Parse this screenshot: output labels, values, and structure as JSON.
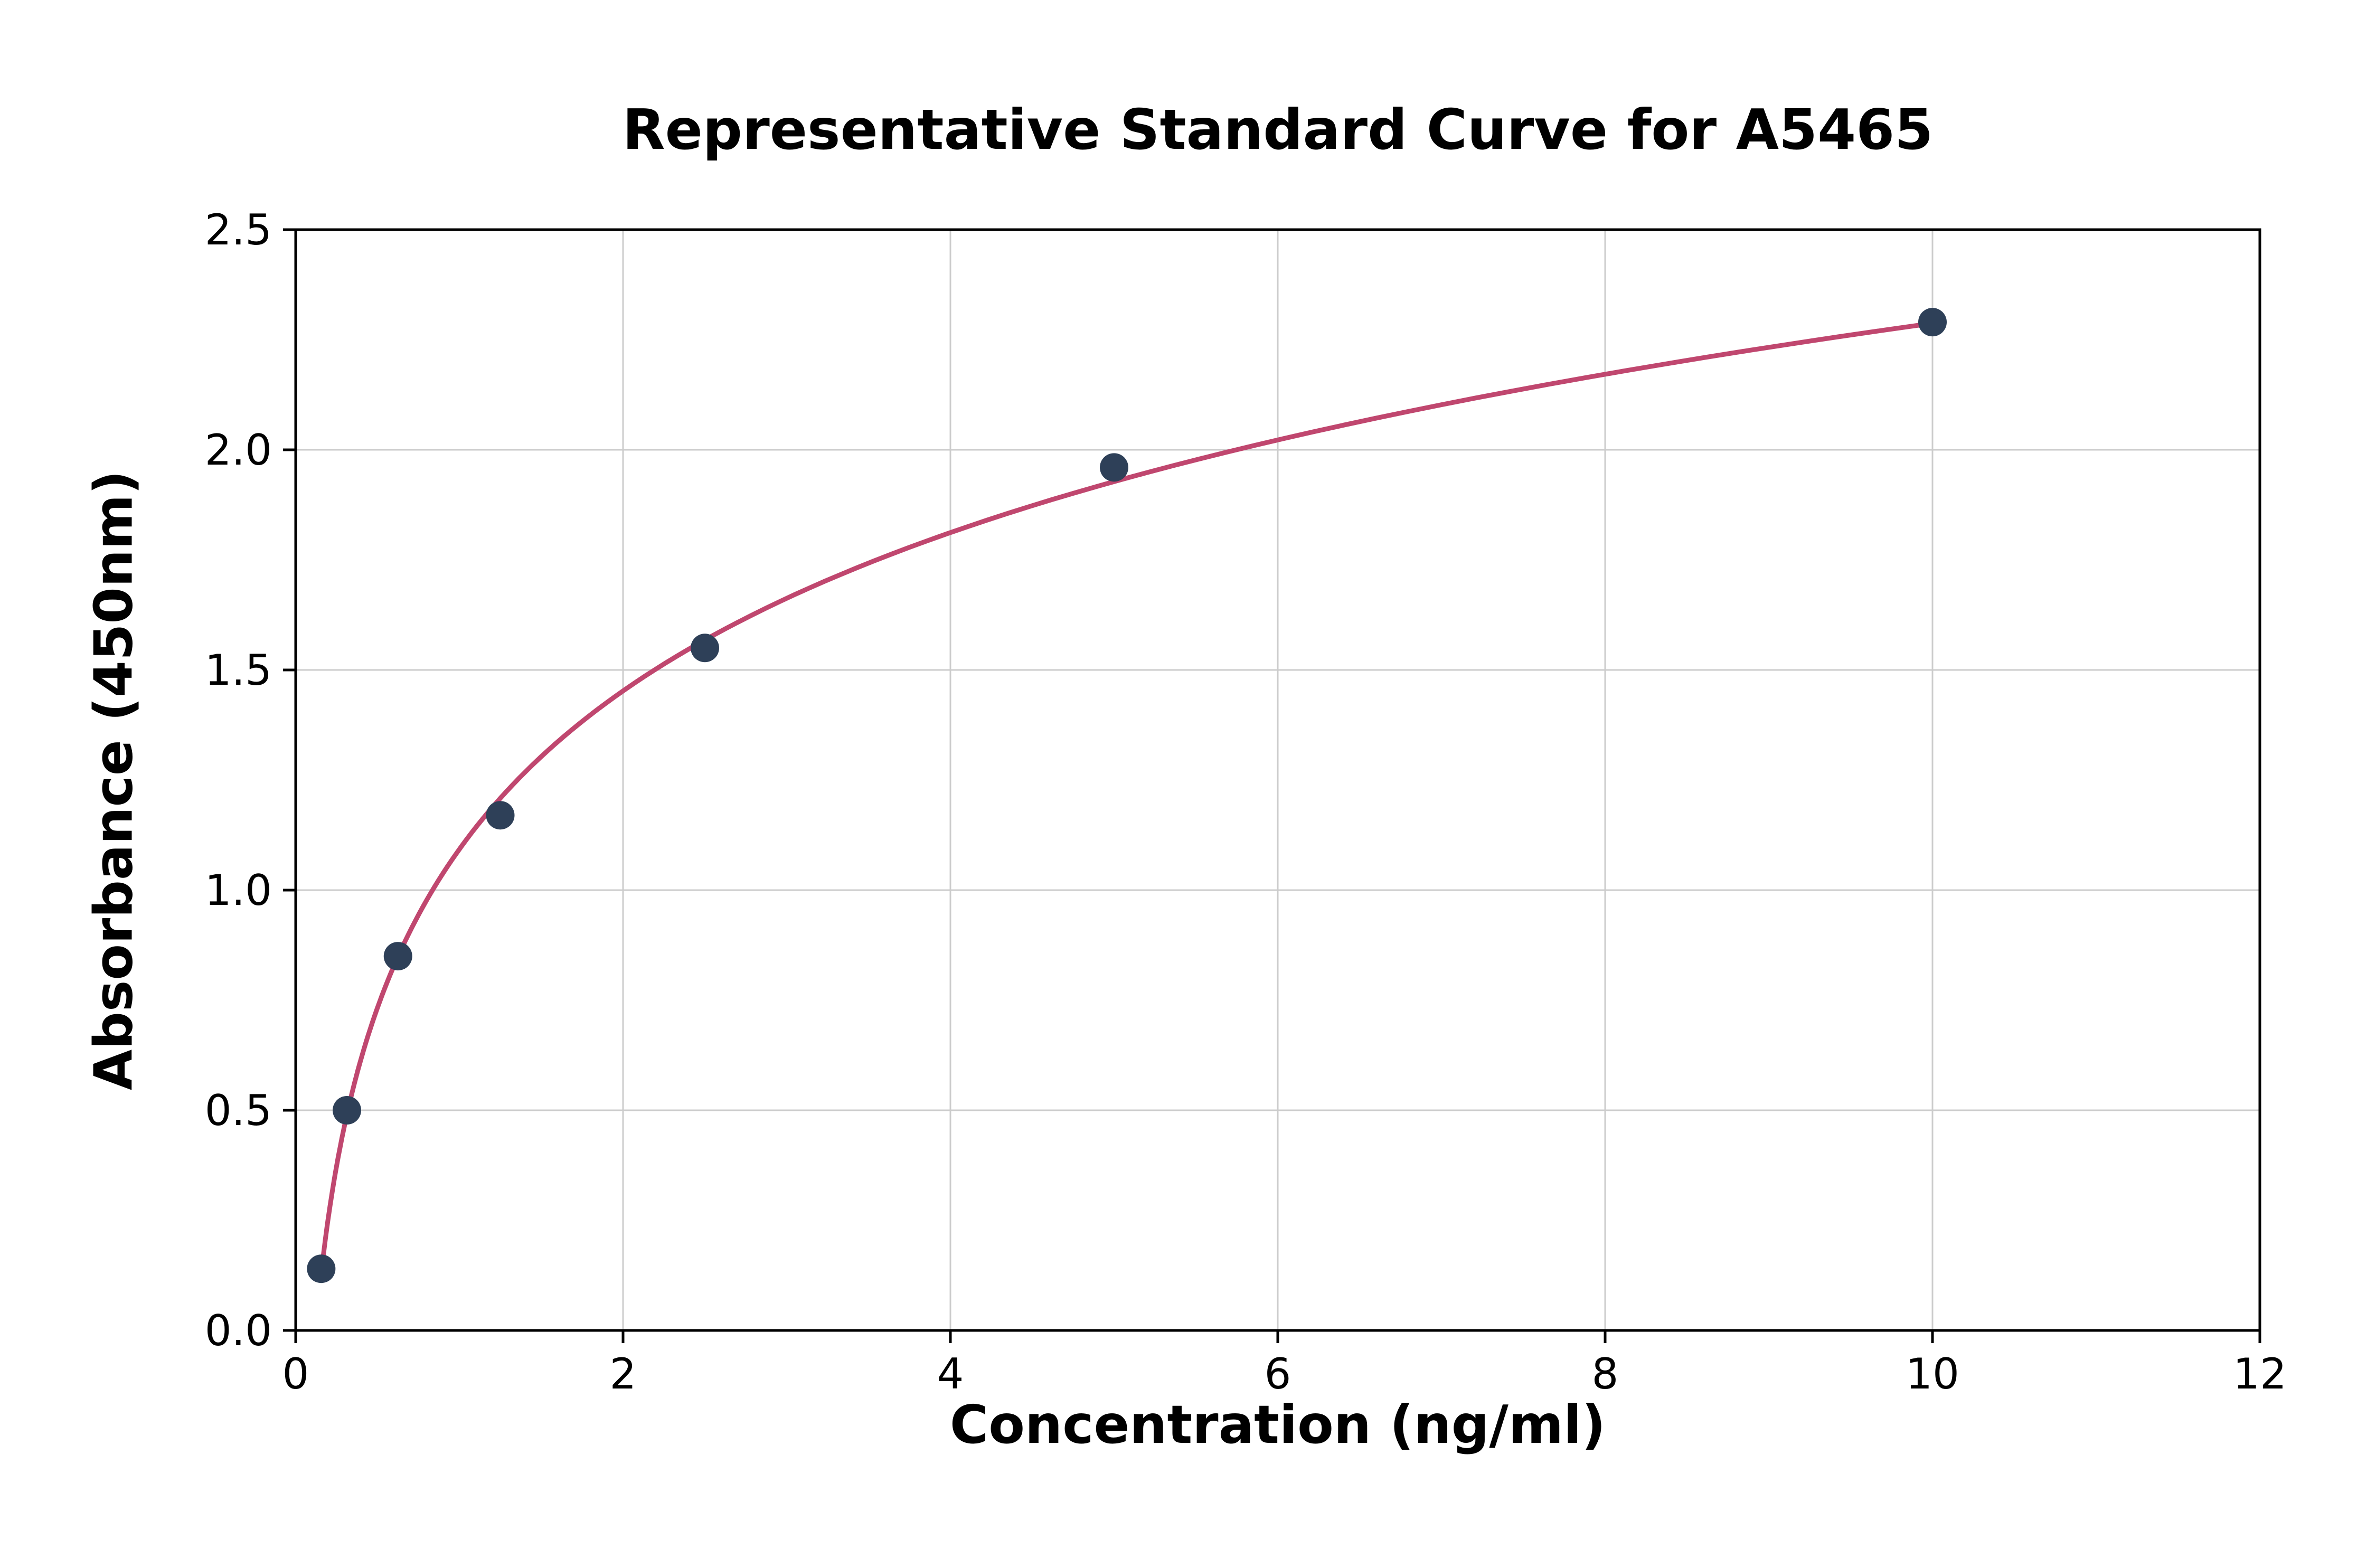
{
  "chart_data": {
    "type": "scatter",
    "title": "Representative Standard Curve for A5465",
    "xlabel": "Concentration (ng/ml)",
    "ylabel": "Absorbance (450nm)",
    "xlim": [
      0,
      12
    ],
    "ylim": [
      0,
      2.5
    ],
    "xticks": [
      0,
      2,
      4,
      6,
      8,
      10,
      12
    ],
    "xtick_labels": [
      "0",
      "2",
      "4",
      "6",
      "8",
      "10",
      "12"
    ],
    "yticks": [
      0,
      0.5,
      1.0,
      1.5,
      2.0,
      2.5
    ],
    "ytick_labels": [
      "0.0",
      "0.5",
      "1.0",
      "1.5",
      "2.0",
      "2.5"
    ],
    "grid": true,
    "legend": "none",
    "points": {
      "x": [
        0.156,
        0.313,
        0.625,
        1.25,
        2.5,
        5,
        10
      ],
      "y": [
        0.14,
        0.5,
        0.85,
        1.17,
        1.55,
        1.96,
        2.29
      ]
    },
    "fit": "logarithmic",
    "colors": {
      "curve": "#c0476f",
      "points": "#2e4058",
      "grid": "#cccccc",
      "axis": "#000000",
      "background": "#ffffff"
    }
  }
}
